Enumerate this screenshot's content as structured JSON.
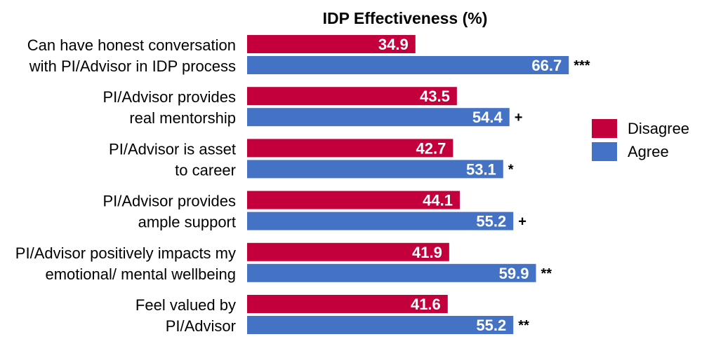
{
  "chart_data": {
    "type": "bar",
    "orientation": "horizontal",
    "title": "IDP Effectiveness (%)",
    "xlabel": "",
    "ylabel": "",
    "xlim": [
      0,
      100
    ],
    "grid": false,
    "legend_position": "right",
    "categories": [
      [
        "Can have honest conversation",
        "with PI/Advisor in IDP process"
      ],
      [
        "PI/Advisor provides",
        "real mentorship"
      ],
      [
        "PI/Advisor is asset",
        "to career"
      ],
      [
        "PI/Advisor provides",
        "ample support"
      ],
      [
        "PI/Advisor positively impacts my",
        "emotional/ mental wellbeing"
      ],
      [
        "Feel valued by",
        "PI/Advisor"
      ]
    ],
    "series": [
      {
        "name": "Disagree",
        "color": "#c3003b",
        "values": [
          34.9,
          43.5,
          42.7,
          44.1,
          41.9,
          41.6
        ]
      },
      {
        "name": "Agree",
        "color": "#4472c4",
        "values": [
          66.7,
          54.4,
          53.1,
          55.2,
          59.9,
          55.2
        ]
      }
    ],
    "significance": [
      "***",
      "+",
      "*",
      "+",
      "**",
      "**"
    ]
  }
}
